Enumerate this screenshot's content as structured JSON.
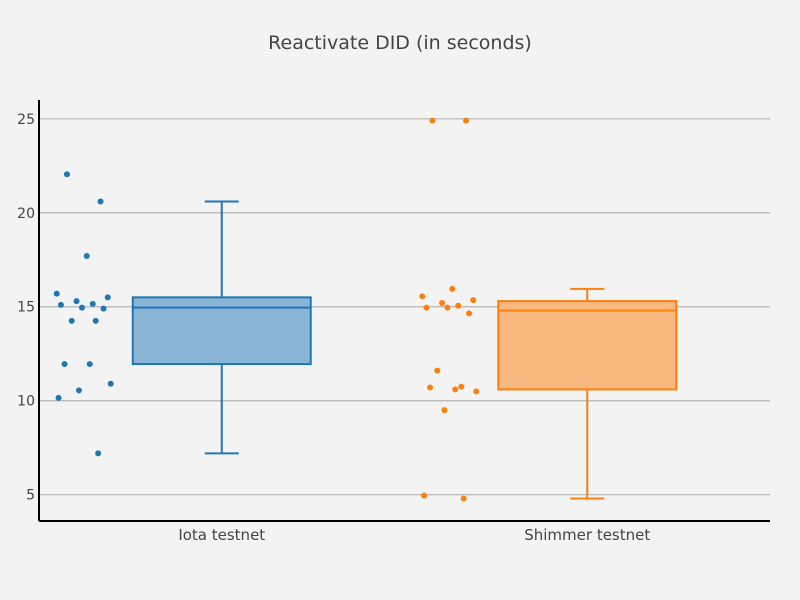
{
  "chart_data": {
    "type": "box",
    "title": "Reactivate DID (in seconds)",
    "xlabel": "",
    "ylabel": "",
    "ylim": [
      3.6,
      26
    ],
    "yticks": [
      5,
      10,
      15,
      20,
      25
    ],
    "grid": true,
    "legend": "none",
    "categories": [
      "Iota testnet",
      "Shimmer testnet"
    ],
    "series": [
      {
        "category": "Iota testnet",
        "color": "#1f77b4",
        "fill": "#8ab4d6",
        "box": {
          "lower_whisker": 7.2,
          "q1": 11.95,
          "median": 14.95,
          "q3": 15.5,
          "upper_whisker": 20.6
        },
        "points": [
          22.05,
          20.6,
          17.7,
          15.7,
          15.5,
          15.3,
          15.15,
          15.1,
          14.95,
          14.9,
          14.25,
          14.25,
          11.95,
          11.95,
          10.9,
          10.55,
          10.15,
          7.2
        ]
      },
      {
        "category": "Shimmer testnet",
        "color": "#ff7f0e",
        "fill": "#f8b880",
        "box": {
          "lower_whisker": 4.8,
          "q1": 10.6,
          "median": 14.8,
          "q3": 15.3,
          "upper_whisker": 15.95
        },
        "points": [
          24.9,
          24.9,
          15.95,
          15.55,
          15.35,
          15.2,
          15.05,
          14.95,
          14.95,
          14.65,
          11.6,
          10.75,
          10.7,
          10.6,
          10.5,
          9.5,
          4.95,
          4.8
        ]
      }
    ]
  }
}
